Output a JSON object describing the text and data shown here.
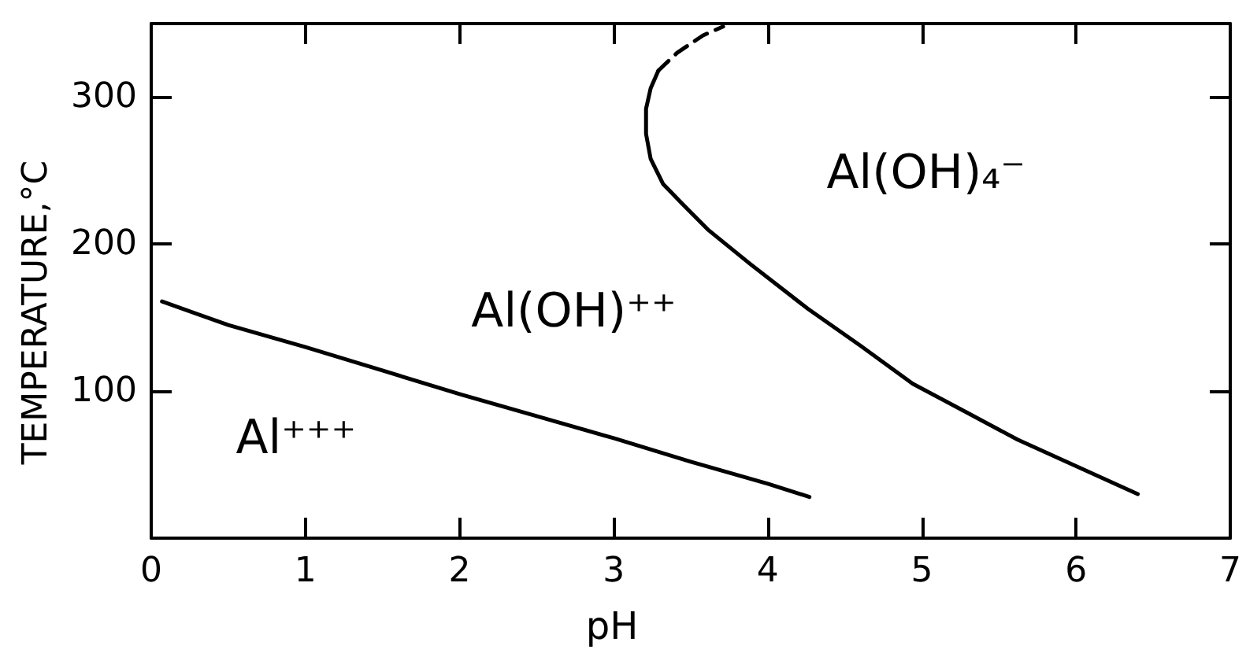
{
  "chart_data": {
    "type": "line",
    "xlabel": "pH",
    "ylabel": "TEMPERATURE,°C",
    "xlim": [
      0,
      7
    ],
    "ylim": [
      0,
      350
    ],
    "xticks": [
      0,
      1,
      2,
      3,
      4,
      5,
      6,
      7
    ],
    "yticks": [
      100,
      200,
      300
    ],
    "marker": "none",
    "series": [
      {
        "color": "#000000",
        "line_style": "solid",
        "x": [
          0.07,
          0.5,
          1,
          1.5,
          2,
          2.5,
          3,
          3.5,
          4,
          4.27
        ],
        "values": [
          161,
          145,
          130,
          114,
          98,
          83,
          68,
          52,
          37,
          28
        ]
      },
      {
        "color": "#000000",
        "line_style": "solid",
        "x": [
          3.29,
          3.24,
          3.21,
          3.21,
          3.24,
          3.32,
          3.44,
          3.61,
          3.88,
          4.26,
          4.6,
          4.94,
          5.3,
          5.62,
          6.0,
          6.4
        ],
        "values": [
          318,
          306,
          292,
          275,
          258,
          241,
          228,
          210,
          187,
          156,
          131,
          105,
          85,
          67,
          49,
          30
        ]
      },
      {
        "color": "#000000",
        "line_style": "dashed",
        "x": [
          3.29,
          3.31,
          3.41,
          3.58,
          3.71
        ],
        "values": [
          318,
          320,
          330,
          342,
          348
        ]
      }
    ],
    "annotations": [
      "Al⁺⁺⁺",
      "Al(OH)⁺⁺",
      "Al(OH)₄⁻"
    ]
  }
}
